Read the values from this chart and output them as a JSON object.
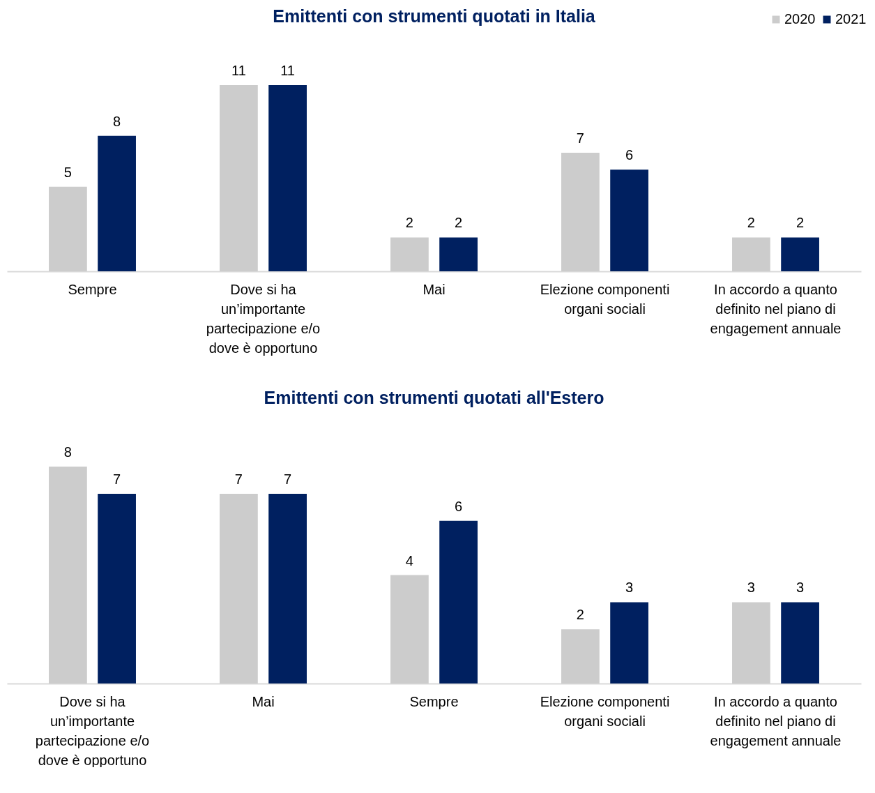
{
  "chart_data": [
    {
      "type": "bar",
      "title": "Emittenti con strumenti quotati in Italia",
      "categories": [
        "Sempre",
        "Dove si ha un’importante partecipazione e/o dove è opportuno",
        "Mai",
        "Elezione componenti organi sociali",
        "In accordo a quanto definito nel piano di engagement annuale"
      ],
      "series": [
        {
          "name": "2020",
          "color": "#cccccc",
          "values": [
            5,
            11,
            2,
            7,
            2
          ]
        },
        {
          "name": "2021",
          "color": "#002060",
          "values": [
            8,
            11,
            2,
            6,
            2
          ]
        }
      ],
      "data_labels": true,
      "legend": "top right"
    },
    {
      "type": "bar",
      "title": "Emittenti con strumenti quotati all'Estero",
      "categories": [
        "Dove si ha un’importante partecipazione e/o dove è opportuno",
        "Mai",
        "Sempre",
        "Elezione componenti organi sociali",
        "In accordo a quanto definito nel piano di engagement annuale"
      ],
      "series": [
        {
          "color": "#cccccc",
          "values": [
            8,
            7,
            4,
            2,
            3
          ]
        },
        {
          "color": "#002060",
          "values": [
            7,
            7,
            6,
            3,
            3
          ]
        }
      ],
      "data_labels": true,
      "legend": false
    }
  ]
}
